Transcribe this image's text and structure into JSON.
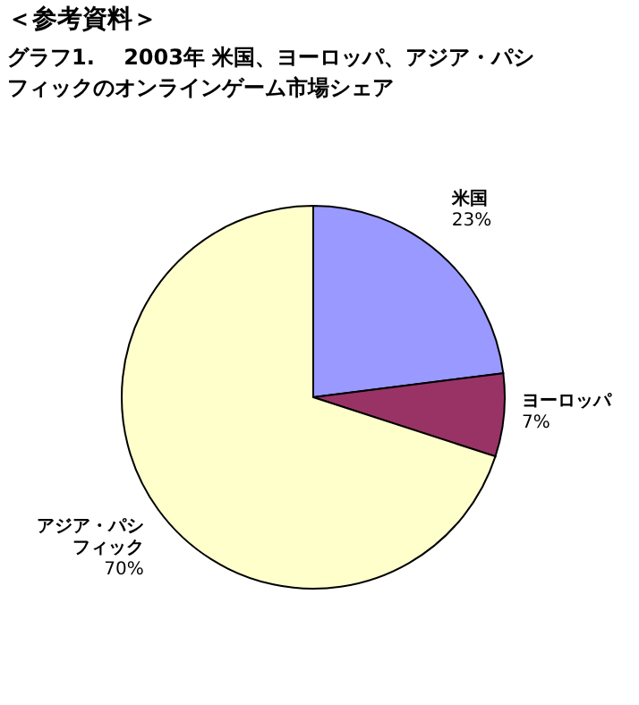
{
  "chart_data": {
    "type": "pie",
    "title": "＜参考資料＞",
    "subtitle": "グラフ1.　 2003年 米国、ヨーロッパ、アジア・パシフィックのオンラインゲーム市場シェア",
    "categories": [
      "米国",
      "ヨーロッパ",
      "アジア・パシフィック"
    ],
    "values": [
      23,
      7,
      70
    ],
    "colors": [
      "#9999ff",
      "#993366",
      "#ffffcc"
    ],
    "value_labels": [
      "23%",
      "7%",
      "70%"
    ]
  }
}
